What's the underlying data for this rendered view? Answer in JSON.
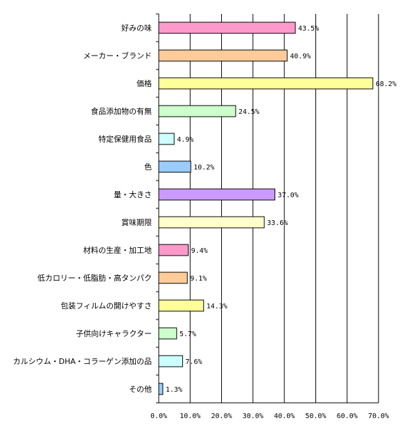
{
  "chart_data": {
    "type": "bar",
    "orientation": "horizontal",
    "categories": [
      "好みの味",
      "メーカー・ブランド",
      "価格",
      "食品添加物の有無",
      "特定保健用食品",
      "色",
      "量・大きさ",
      "賞味期限",
      "材料の生産・加工地",
      "低カロリー・低脂肪・高タンパク",
      "包装フィルムの開けやすさ",
      "子供向けキャラクター",
      "カルシウム・DHA・コラーゲン添加の品",
      "その他"
    ],
    "values": [
      43.5,
      40.9,
      68.2,
      24.5,
      4.9,
      10.2,
      37.0,
      33.6,
      9.4,
      9.1,
      14.3,
      5.7,
      7.6,
      1.3
    ],
    "data_labels": [
      "43.5%",
      "40.9%",
      "68.2%",
      "24.5%",
      "4.9%",
      "10.2%",
      "37.0%",
      "33.6%",
      "9.4%",
      "9.1%",
      "14.3%",
      "5.7%",
      "7.6%",
      "1.3%"
    ],
    "bar_colors": [
      "#ff99cc",
      "#ffcc99",
      "#ffff99",
      "#ccffcc",
      "#ccffff",
      "#99ccff",
      "#cc99ff",
      "#ffffcc",
      "#ff99cc",
      "#ffcc99",
      "#ffff99",
      "#ccffcc",
      "#ccffff",
      "#99ccff"
    ],
    "x_ticks": [
      "0.0%",
      "10.0%",
      "20.0%",
      "30.0%",
      "40.0%",
      "50.0%",
      "60.0%",
      "70.0%"
    ],
    "xlim": [
      0,
      70
    ],
    "grid": true,
    "title": "",
    "xlabel": "",
    "ylabel": ""
  }
}
